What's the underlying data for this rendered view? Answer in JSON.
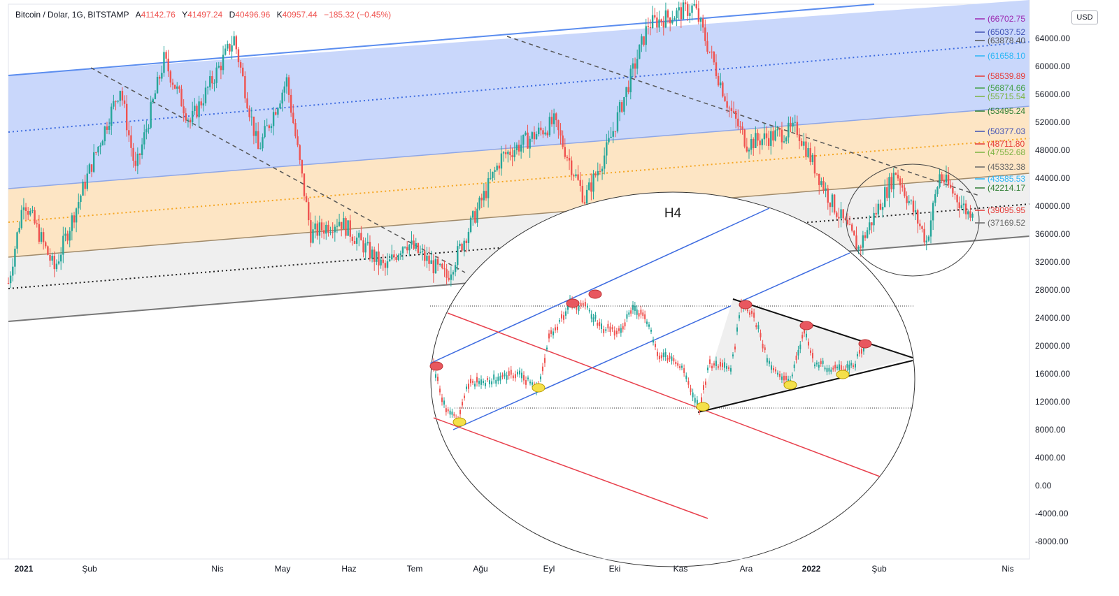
{
  "legend": {
    "symbol": "Bitcoin / Dolar, 1G, BITSTAMP",
    "open_key": "A",
    "open": "41142.76",
    "high_key": "Y",
    "high": "41497.24",
    "low_key": "D",
    "low": "40496.96",
    "close_key": "K",
    "close": "40957.44",
    "change": "−185.32 (−0.45%)"
  },
  "currency_button": "USD",
  "colors": {
    "up": "#26a69a",
    "down": "#ef5350",
    "blue_zone": "#c9d7fb",
    "orange_zone": "#fde5c4",
    "grey_zone": "#efefef",
    "blue_line": "#5b8def",
    "orange_line": "#f5a623",
    "red_line": "#e8414d"
  },
  "chart_data": [
    {
      "type": "candlestick",
      "title": "Bitcoin / Dolar, 1G, BITSTAMP",
      "x_ticks": [
        "2021",
        "Şub",
        "Nis",
        "May",
        "Haz",
        "Tem",
        "Ağu",
        "Eyl",
        "Eki",
        "Kas",
        "Ara",
        "2022",
        "Şub",
        "Nis"
      ],
      "y_ticks": [
        64000,
        60000,
        56000,
        52000,
        48000,
        44000,
        40000,
        36000,
        32000,
        28000,
        24000,
        20000,
        16000,
        12000,
        8000,
        4000,
        0,
        -4000,
        -8000
      ],
      "ylim": [
        -10500,
        69500
      ],
      "approx_close_path": [
        {
          "t": "2021-01-01",
          "v": 29000
        },
        {
          "t": "2021-01-08",
          "v": 41000
        },
        {
          "t": "2021-01-22",
          "v": 31000
        },
        {
          "t": "2021-02-08",
          "v": 46000
        },
        {
          "t": "2021-02-21",
          "v": 57000
        },
        {
          "t": "2021-02-28",
          "v": 45000
        },
        {
          "t": "2021-03-13",
          "v": 61000
        },
        {
          "t": "2021-03-25",
          "v": 52000
        },
        {
          "t": "2021-04-14",
          "v": 64000
        },
        {
          "t": "2021-04-25",
          "v": 48000
        },
        {
          "t": "2021-05-08",
          "v": 58000
        },
        {
          "t": "2021-05-19",
          "v": 36000
        },
        {
          "t": "2021-06-01",
          "v": 38000
        },
        {
          "t": "2021-06-22",
          "v": 31000
        },
        {
          "t": "2021-07-01",
          "v": 35000
        },
        {
          "t": "2021-07-20",
          "v": 29800
        },
        {
          "t": "2021-08-14",
          "v": 47000
        },
        {
          "t": "2021-09-07",
          "v": 52000
        },
        {
          "t": "2021-09-21",
          "v": 41000
        },
        {
          "t": "2021-10-01",
          "v": 48000
        },
        {
          "t": "2021-10-20",
          "v": 66000
        },
        {
          "t": "2021-11-10",
          "v": 68500
        },
        {
          "t": "2021-11-26",
          "v": 54000
        },
        {
          "t": "2021-12-04",
          "v": 49000
        },
        {
          "t": "2021-12-27",
          "v": 51000
        },
        {
          "t": "2022-01-10",
          "v": 41500
        },
        {
          "t": "2022-01-24",
          "v": 34000
        },
        {
          "t": "2022-02-10",
          "v": 45000
        },
        {
          "t": "2022-02-24",
          "v": 35000
        },
        {
          "t": "2022-03-02",
          "v": 44500
        },
        {
          "t": "2022-03-15",
          "v": 39000
        },
        {
          "t": "2022-03-20",
          "v": 41000
        }
      ],
      "price_labels": [
        {
          "text": "(66702.75",
          "color": "#9c27b0"
        },
        {
          "text": "(65037.52",
          "color": "#3f51b5"
        },
        {
          "text": "(63878.40",
          "color": "#555555"
        },
        {
          "text": "(61658.10",
          "color": "#29b6f6"
        },
        {
          "text": "(58539.89",
          "color": "#e53935"
        },
        {
          "text": "(56874.66",
          "color": "#43a047"
        },
        {
          "text": "(55715.54",
          "color": "#7cb342"
        },
        {
          "text": "(53495.24",
          "color": "#2e7d32"
        },
        {
          "text": "(50377.03",
          "color": "#3f51b5"
        },
        {
          "text": "(48711.80",
          "color": "#e53935"
        },
        {
          "text": "(47552.68",
          "color": "#7cb342"
        },
        {
          "text": "(45332.38",
          "color": "#666666"
        },
        {
          "text": "(43585.53",
          "color": "#29b6f6"
        },
        {
          "text": "(42214.17",
          "color": "#2e7d32"
        },
        {
          "text": "(39095.95",
          "color": "#e53935"
        },
        {
          "text": "(37169.52",
          "color": "#666666"
        }
      ],
      "inset_label": "H4"
    }
  ]
}
